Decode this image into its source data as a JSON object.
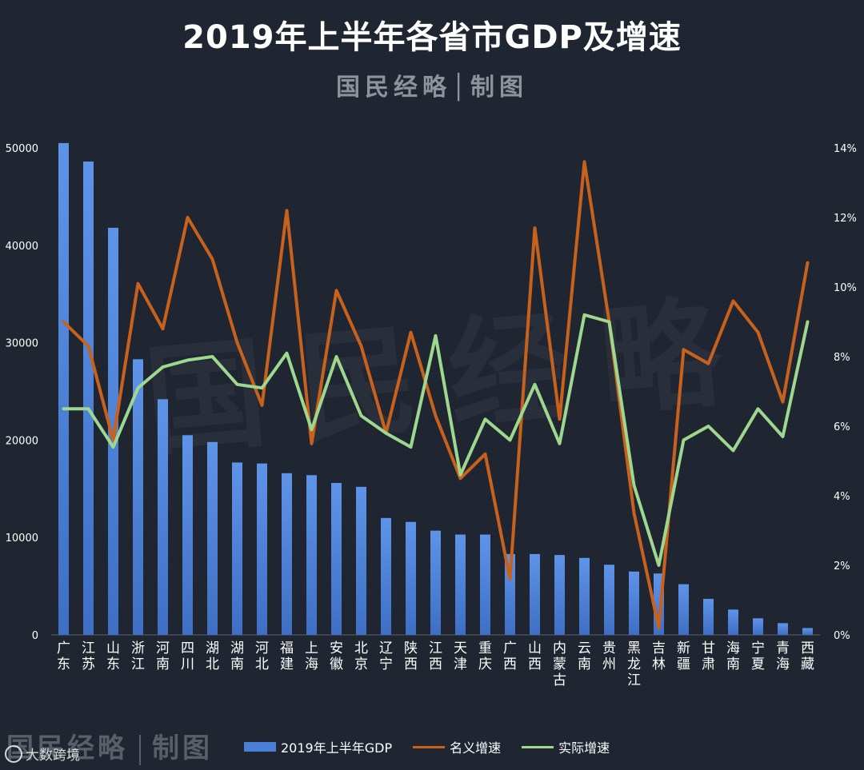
{
  "title": "2019年上半年各省市GDP及增速",
  "subtitle": "国民经略│制图",
  "watermark": "国民经略",
  "footer": {
    "brand_left": "国民经略",
    "brand_right": "制图",
    "source": "大数跨境"
  },
  "colors": {
    "background": "#1f2632",
    "bar": "#4a7fd6",
    "bar_top": "#5e94e8",
    "nominal": "#c8611c",
    "real": "#9ed88f",
    "axis_text": "#ffffff",
    "gridline": "#3a4250"
  },
  "chart_data": {
    "type": "bar+line",
    "title": "2019年上半年各省市GDP及增速",
    "categories": [
      "广东",
      "江苏",
      "山东",
      "浙江",
      "河南",
      "四川",
      "湖北",
      "湖南",
      "河北",
      "福建",
      "上海",
      "安徽",
      "北京",
      "辽宁",
      "陕西",
      "江西",
      "天津",
      "重庆",
      "广西",
      "山西",
      "内蒙古",
      "云南",
      "贵州",
      "黑龙江",
      "吉林",
      "新疆",
      "甘肃",
      "海南",
      "宁夏",
      "青海",
      "西藏"
    ],
    "left_axis": {
      "ylim": [
        0,
        50000
      ],
      "ticks": [
        0,
        10000,
        20000,
        30000,
        40000,
        50000
      ],
      "tick_labels": [
        "0",
        "10000",
        "20000",
        "30000",
        "40000",
        "50000"
      ]
    },
    "right_axis": {
      "ylim": [
        0,
        14
      ],
      "ticks": [
        0,
        2,
        4,
        6,
        8,
        10,
        12,
        14
      ],
      "tick_labels": [
        "0%",
        "2%",
        "4%",
        "6%",
        "8%",
        "10%",
        "12%",
        "14%"
      ]
    },
    "series": [
      {
        "name": "2019年上半年GDP",
        "kind": "bar",
        "axis": "left",
        "values": [
          50500,
          48600,
          41800,
          28300,
          24200,
          20500,
          19800,
          17700,
          17600,
          16600,
          16400,
          15600,
          15200,
          12000,
          11600,
          10700,
          10300,
          10300,
          8300,
          8300,
          8200,
          7900,
          7200,
          6500,
          6300,
          5200,
          3700,
          2600,
          1700,
          1200,
          700
        ]
      },
      {
        "name": "名义增速",
        "kind": "line",
        "axis": "right",
        "values": [
          9.0,
          8.3,
          5.6,
          10.1,
          8.8,
          12.0,
          10.8,
          8.4,
          6.6,
          12.2,
          5.5,
          9.9,
          8.3,
          5.8,
          8.7,
          6.3,
          4.5,
          5.2,
          1.6,
          11.7,
          6.2,
          13.6,
          9.0,
          3.5,
          0.2,
          8.2,
          7.8,
          9.6,
          8.7,
          6.7,
          10.7
        ]
      },
      {
        "name": "实际增速",
        "kind": "line",
        "axis": "right",
        "values": [
          6.5,
          6.5,
          5.4,
          7.1,
          7.7,
          7.9,
          8.0,
          7.2,
          7.1,
          8.1,
          5.9,
          8.0,
          6.3,
          5.8,
          5.4,
          8.6,
          4.6,
          6.2,
          5.6,
          7.2,
          5.5,
          9.2,
          9.0,
          4.3,
          2.0,
          5.6,
          6.0,
          5.3,
          6.5,
          5.7,
          9.0
        ]
      }
    ],
    "legend": {
      "position": "bottom"
    }
  }
}
